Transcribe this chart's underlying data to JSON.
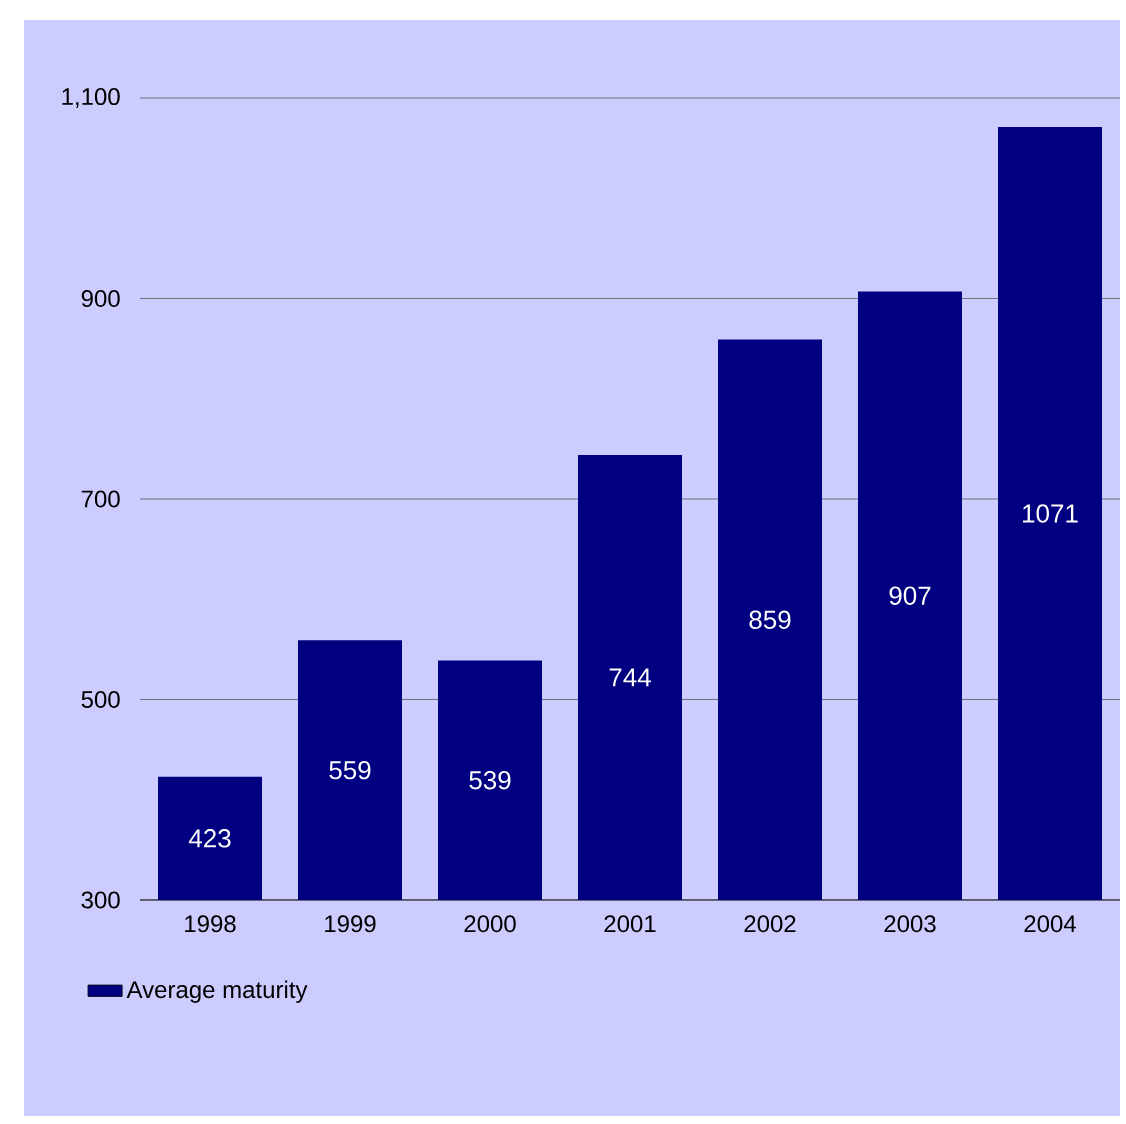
{
  "chart_data": {
    "type": "bar",
    "categories": [
      "1998",
      "1999",
      "2000",
      "2001",
      "2002",
      "2003",
      "2004"
    ],
    "series": [
      {
        "name": "Average maturity",
        "color": "#000080",
        "values": [
          423,
          559,
          539,
          744,
          859,
          907,
          1071
        ]
      }
    ],
    "ylim": [
      300,
      1100
    ],
    "yticks": [
      300,
      500,
      700,
      900,
      {
        "value": 1100,
        "label": "1,100"
      }
    ],
    "grid": "y",
    "legend": "bottom",
    "data_labels": true
  }
}
